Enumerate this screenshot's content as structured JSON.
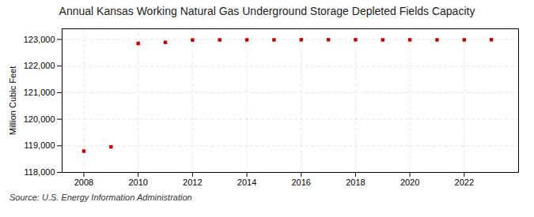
{
  "chart_data": {
    "type": "scatter",
    "title": "Annual Kansas Working Natural Gas Underground Storage Depleted Fields Capacity",
    "ylabel": "Million Cubic Feet",
    "source": "Source: U.S. Energy Information Administration",
    "x": [
      2008,
      2009,
      2010,
      2011,
      2012,
      2013,
      2014,
      2015,
      2016,
      2017,
      2018,
      2019,
      2020,
      2021,
      2022,
      2023
    ],
    "values": [
      118800,
      118960,
      122850,
      122890,
      122980,
      122985,
      122985,
      122985,
      122990,
      122990,
      122990,
      122985,
      122985,
      122985,
      122985,
      122990
    ],
    "color": "#cc0000",
    "marker": "square",
    "xlim": [
      2007.2,
      2024.0
    ],
    "xticks": [
      2008,
      2010,
      2012,
      2014,
      2016,
      2018,
      2020,
      2022
    ],
    "ylim": [
      118000,
      123400
    ],
    "yticks": [
      {
        "value": 118000,
        "label": "118,000"
      },
      {
        "value": 119000,
        "label": "119,000"
      },
      {
        "value": 120000,
        "label": "120,000"
      },
      {
        "value": 121000,
        "label": "121,000"
      },
      {
        "value": 122000,
        "label": "122,000"
      },
      {
        "value": 123000,
        "label": "123,000"
      }
    ],
    "grid": true
  }
}
